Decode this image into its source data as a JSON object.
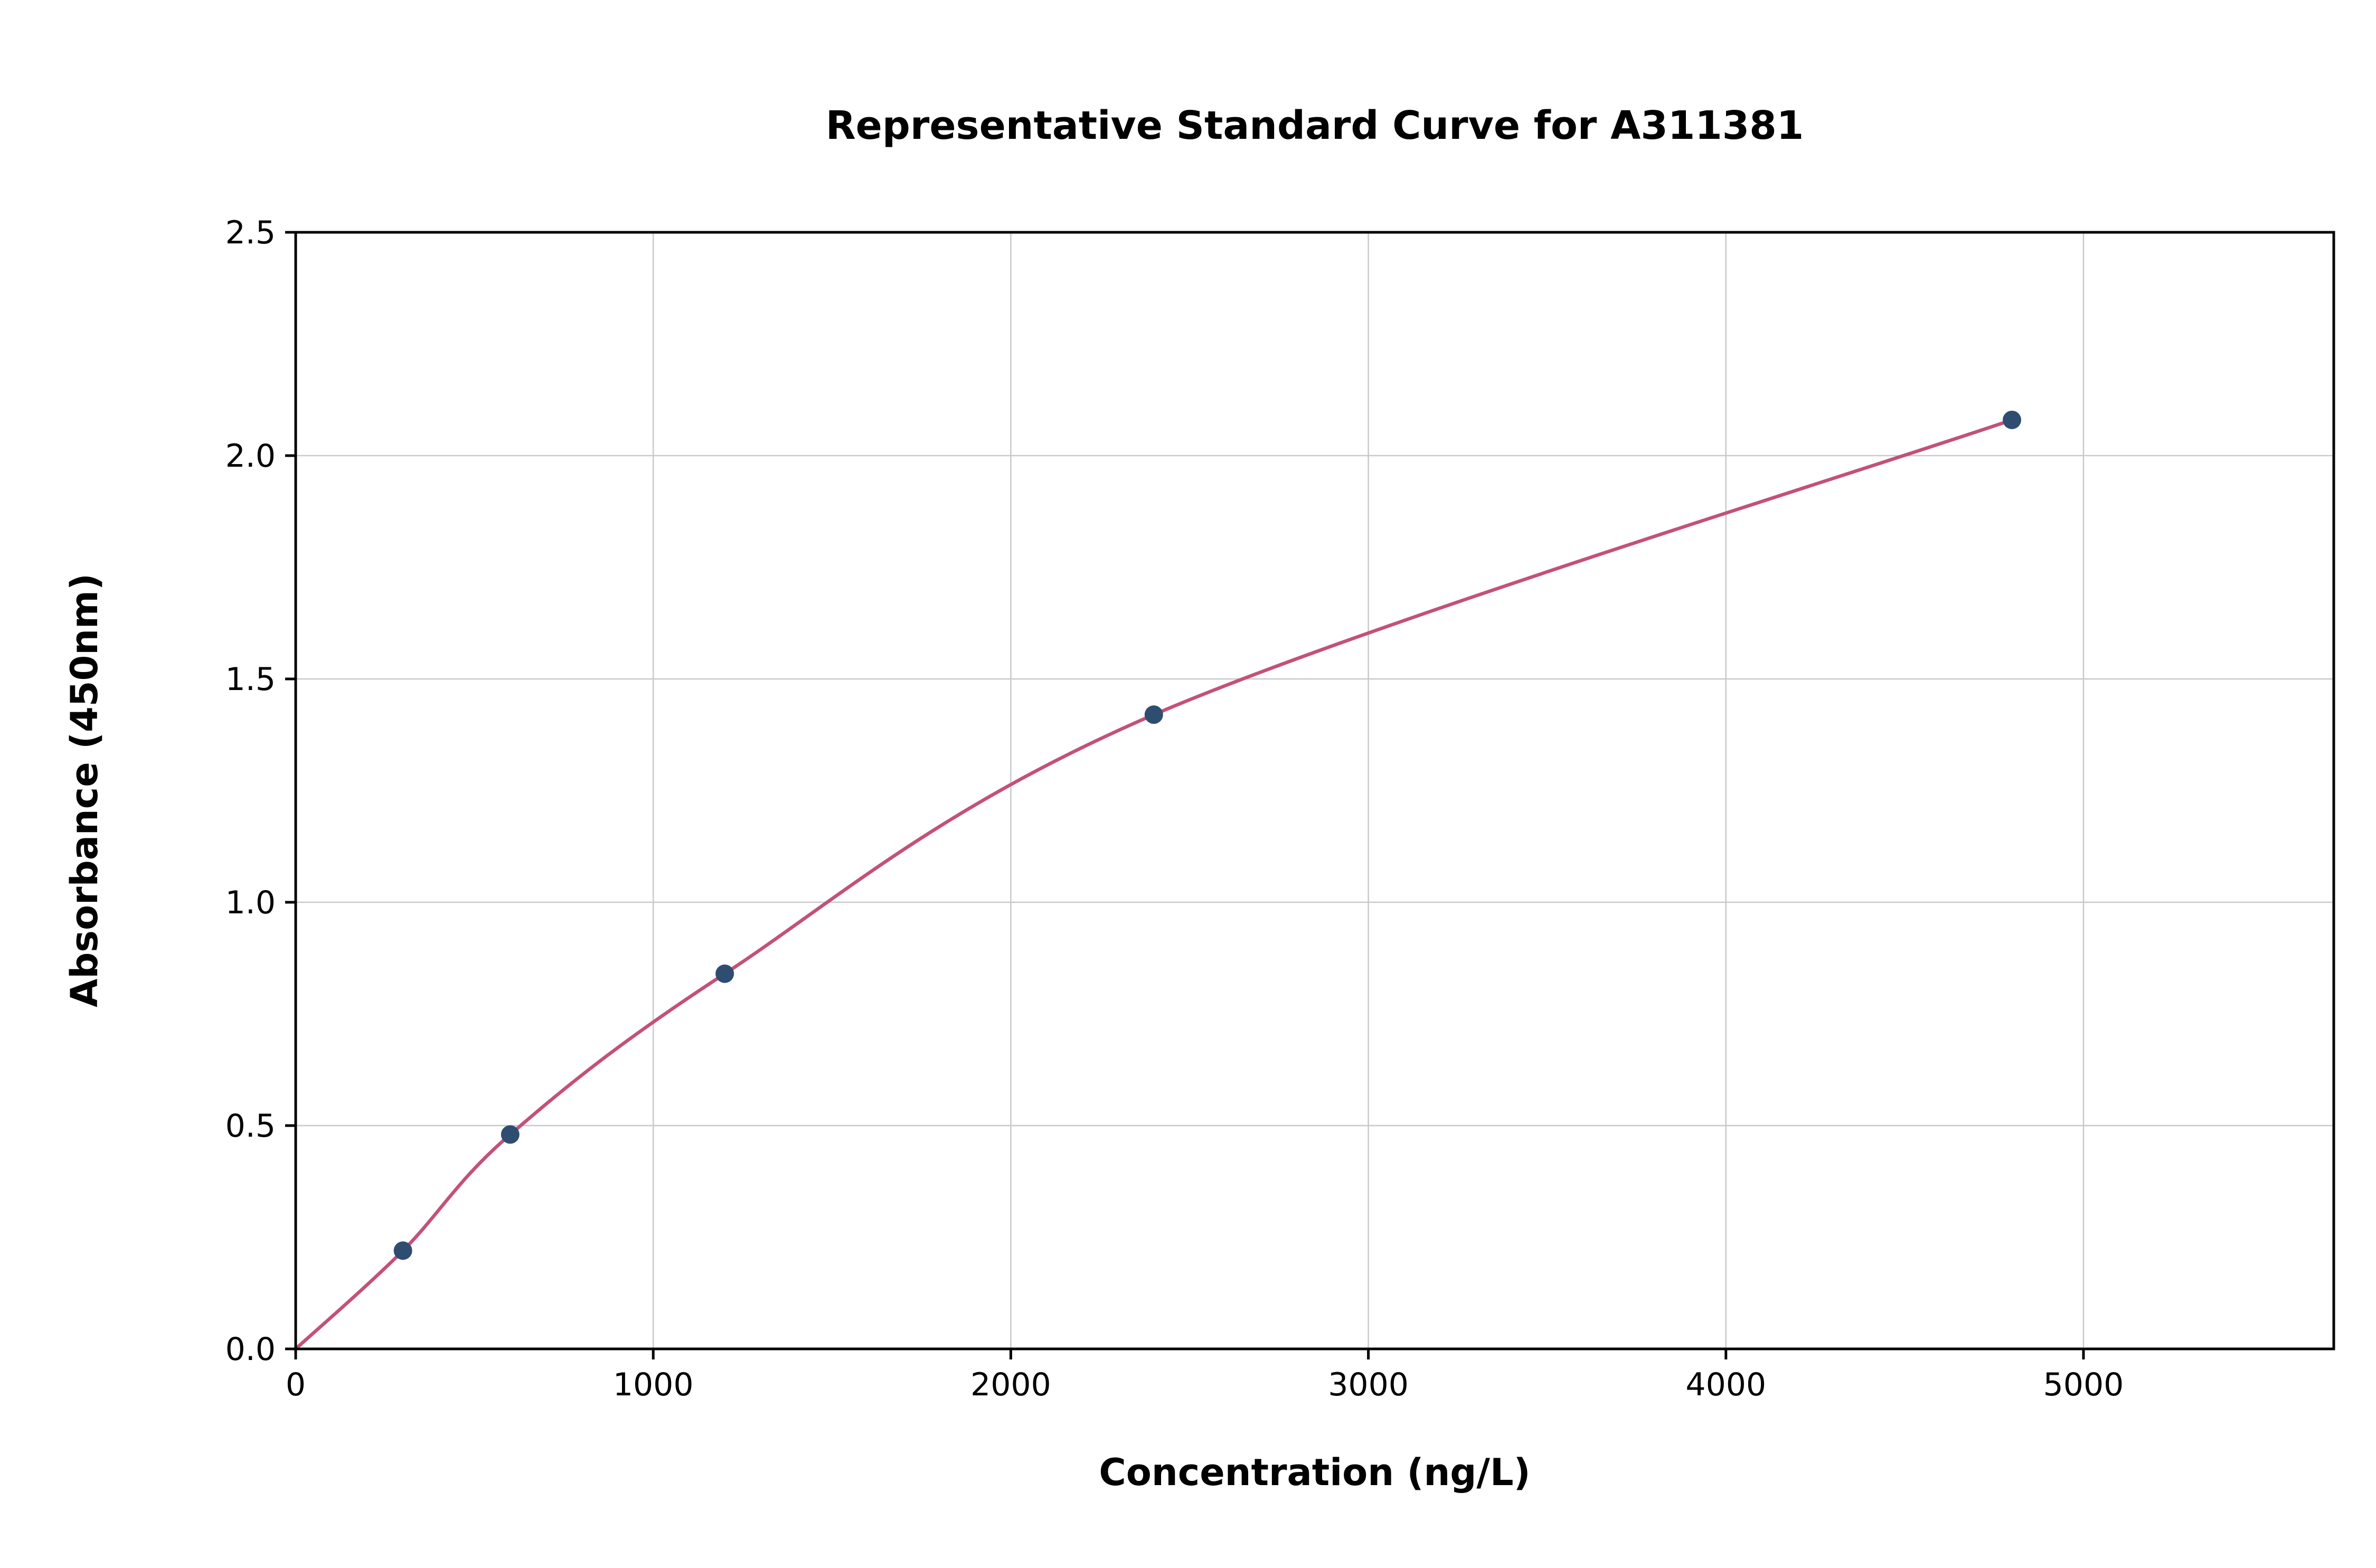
{
  "chart_data": {
    "type": "scatter",
    "title": "Representative Standard Curve for A311381",
    "xlabel": "Concentration (ng/L)",
    "ylabel": "Absorbance (450nm)",
    "x": [
      300,
      600,
      1200,
      2400,
      4800
    ],
    "y": [
      0.22,
      0.48,
      0.84,
      1.42,
      2.08
    ],
    "curve_start": [
      0,
      0
    ],
    "xlim": [
      0,
      5700
    ],
    "ylim": [
      0,
      2.5
    ],
    "x_ticks": [
      0,
      1000,
      2000,
      3000,
      4000,
      5000
    ],
    "x_tick_labels": [
      "0",
      "1000",
      "2000",
      "3000",
      "4000",
      "5000"
    ],
    "y_ticks": [
      0.0,
      0.5,
      1.0,
      1.5,
      2.0,
      2.5
    ],
    "y_tick_labels": [
      "0.0",
      "0.5",
      "1.0",
      "1.5",
      "2.0",
      "2.5"
    ],
    "grid": true,
    "legend": "none",
    "colors": {
      "line": "#c35179",
      "marker": "#2f4d71",
      "grid": "#c9c9c9",
      "axis": "#000000",
      "background": "#ffffff"
    }
  }
}
